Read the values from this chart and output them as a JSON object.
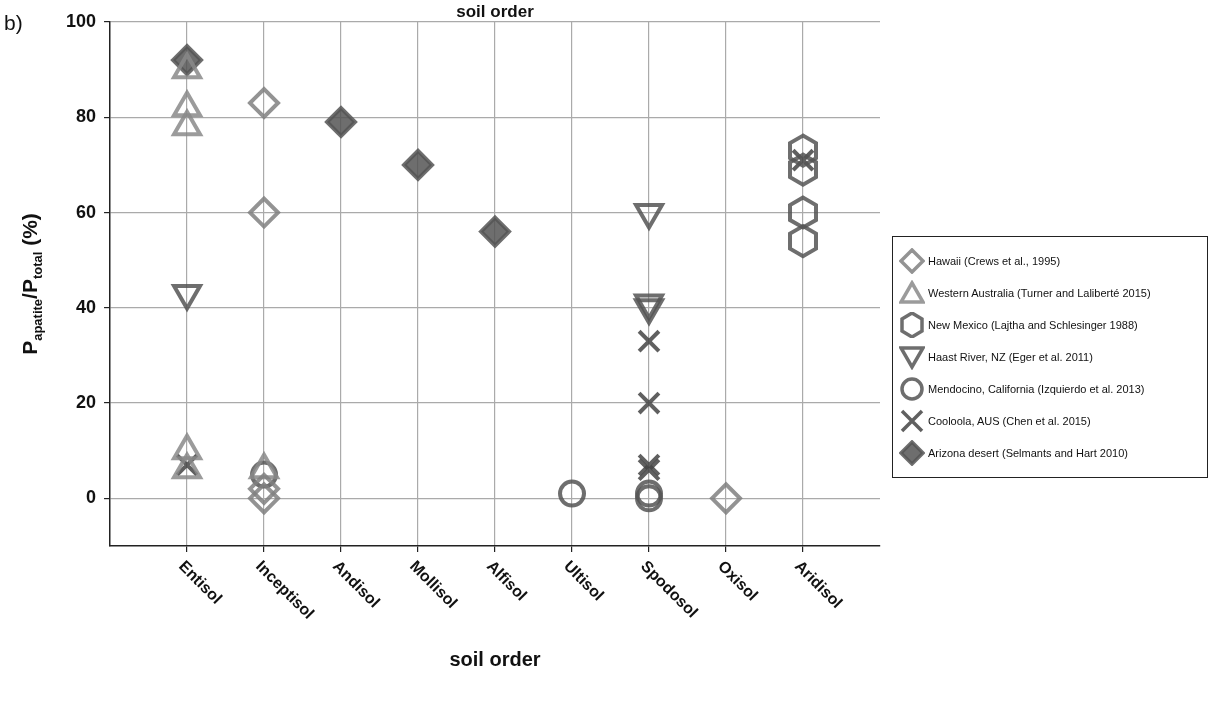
{
  "chart_data": {
    "type": "scatter",
    "title": "soil order",
    "xlabel": "soil order",
    "ylabel": "P$_{apatite}$/P$_{total}$ (%)",
    "annotations": [
      "b)"
    ],
    "categories": [
      "Entisol",
      "Inceptisol",
      "Andisol",
      "Mollisol",
      "Alfisol",
      "Ultisol",
      "Spodosol",
      "Oxisol",
      "Aridisol"
    ],
    "ylim": [
      -10,
      100
    ],
    "yticks": [
      0,
      20,
      40,
      60,
      80,
      100
    ],
    "grid": true,
    "legend": "right",
    "series": [
      {
        "name": "Hawaii (Crews et al., 1995)",
        "color": "#808080",
        "marker": "diamond",
        "x": [
          "Inceptisol",
          "Inceptisol",
          "Inceptisol",
          "Inceptisol",
          "Oxisol"
        ],
        "values": [
          83,
          60,
          2,
          0,
          0
        ]
      },
      {
        "name": "Western Australia (Turner and Laliberté 2015)",
        "color": "#8a8a8a",
        "marker": "triangle",
        "x": [
          "Entisol",
          "Entisol",
          "Entisol",
          "Entisol",
          "Entisol",
          "Inceptisol"
        ],
        "values": [
          90,
          82,
          78,
          10,
          6,
          6
        ]
      },
      {
        "name": "New Mexico (Lajtha and Schlesinger 1988)",
        "color": "#555555",
        "x": [
          "Aridisol",
          "Aridisol",
          "Aridisol",
          "Aridisol"
        ],
        "values": [
          73,
          69,
          60,
          54
        ]
      },
      {
        "name": "Haast River, NZ (Eger et al. 2011)",
        "color": "#555555",
        "marker": "triangle_down",
        "x": [
          "Entisol",
          "Spodosol",
          "Spodosol",
          "Spodosol"
        ],
        "values": [
          43,
          60,
          41,
          40
        ]
      },
      {
        "name": "Mendocino, California (Izquierdo et al. 2013)",
        "color": "#555555",
        "marker": "circle",
        "x": [
          "Inceptisol",
          "Ultisol",
          "Spodosol",
          "Spodosol"
        ],
        "values": [
          5,
          1,
          1,
          0
        ]
      },
      {
        "name": "Cooloola, AUS (Chen et al. 2015)",
        "color": "#444444",
        "marker": "cross",
        "x": [
          "Entisol",
          "Spodosol",
          "Spodosol",
          "Spodosol",
          "Spodosol",
          "Aridisol"
        ],
        "values": [
          7,
          33,
          20,
          7,
          6,
          71
        ]
      },
      {
        "name": "Arizona desert (Selmants and Hart 2010)",
        "color": "#555555",
        "marker": "diamond",
        "x": [
          "Entisol",
          "Andisol",
          "Mollisol",
          "Alfisol"
        ],
        "values": [
          92,
          79,
          70,
          56
        ]
      }
    ]
  }
}
